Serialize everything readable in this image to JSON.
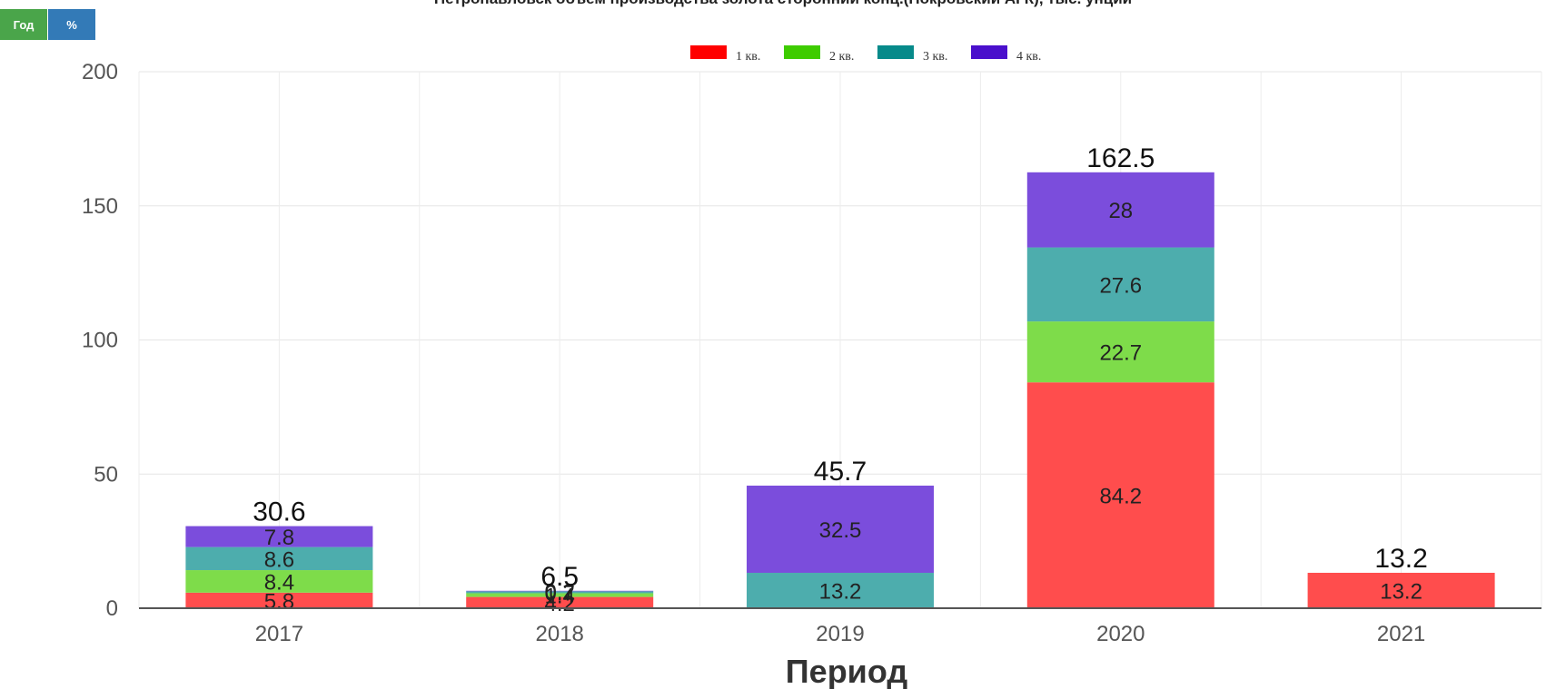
{
  "controls": {
    "year_label": "Год",
    "percent_label": "%"
  },
  "chart_data": {
    "type": "bar",
    "stacked": true,
    "title": "Петропавловск объем производства золота сторонний конц.(Покровский АГК), тыс. унций",
    "xlabel": "Период",
    "ylabel": "",
    "categories": [
      "2017",
      "2018",
      "2019",
      "2020",
      "2021"
    ],
    "ylim": [
      0,
      200
    ],
    "yticks": [
      0,
      50,
      100,
      150,
      200
    ],
    "grid": true,
    "legend_position": "top",
    "series": [
      {
        "name": "1 кв.",
        "color": "#ff0000",
        "fill": "#ff4d4d",
        "values": [
          5.8,
          4.2,
          0,
          84.2,
          13.2
        ]
      },
      {
        "name": "2 кв.",
        "color": "#3ecc00",
        "fill": "#7edc4a",
        "values": [
          8.4,
          1.4,
          0,
          22.7,
          0
        ]
      },
      {
        "name": "3 кв.",
        "color": "#078a8a",
        "fill": "#4dadad",
        "values": [
          8.6,
          0.7,
          13.2,
          27.6,
          0
        ]
      },
      {
        "name": "4 кв.",
        "color": "#4a10cc",
        "fill": "#7b4ddc",
        "values": [
          7.8,
          0.2,
          32.5,
          28,
          0
        ]
      }
    ],
    "segment_labels": [
      [
        "5.8",
        "4.2",
        "",
        "84.2",
        "13.2"
      ],
      [
        "8.4",
        "1.4",
        "",
        "22.7",
        ""
      ],
      [
        "8.6",
        "0.7",
        "13.2",
        "27.6",
        ""
      ],
      [
        "7.8",
        "0.2",
        "32.5",
        "28",
        ""
      ]
    ],
    "totals": [
      "30.6",
      "6.5",
      "45.7",
      "162.5",
      "13.2"
    ]
  }
}
